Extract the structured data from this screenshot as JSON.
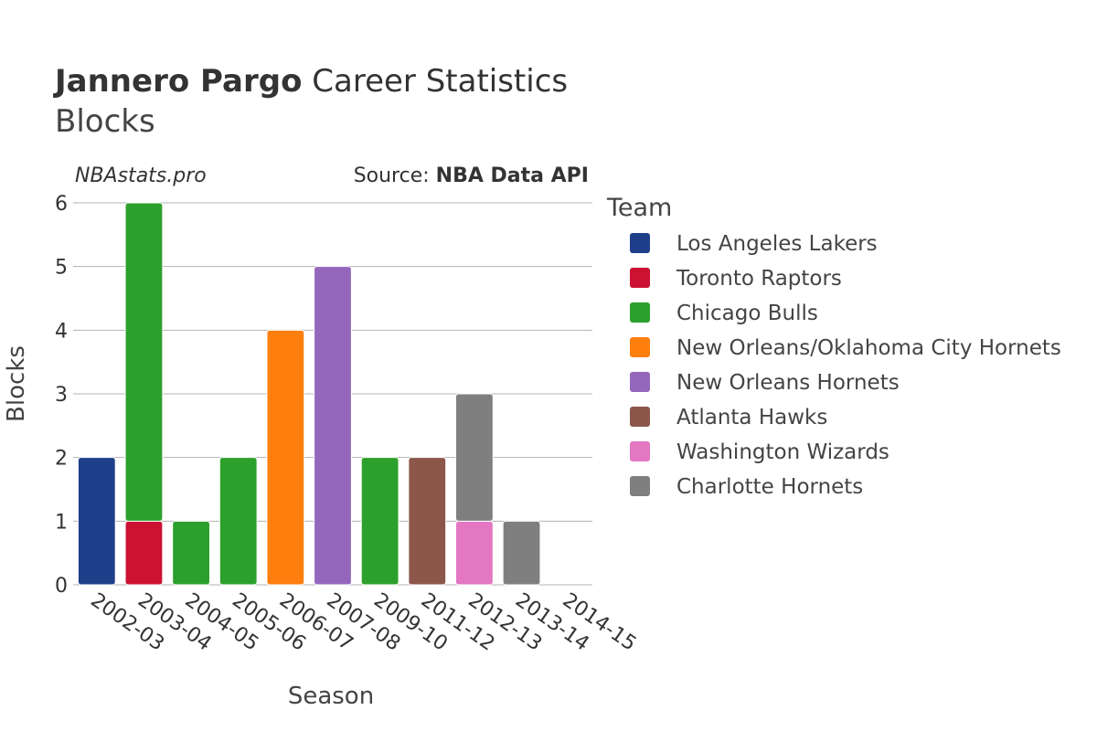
{
  "title": {
    "player": "Jannero Pargo",
    "rest": " Career Statistics",
    "subtitle": "Blocks"
  },
  "credit": {
    "site": "NBAstats.pro",
    "source_prefix": "Source: ",
    "source_name": "NBA Data API"
  },
  "chart_data": {
    "type": "bar",
    "stacked": true,
    "xlabel": "Season",
    "ylabel": "Blocks",
    "ylim": [
      0,
      6
    ],
    "yticks": [
      0,
      1,
      2,
      3,
      4,
      5,
      6
    ],
    "grid": true,
    "legend_title": "Team",
    "legend_position": "right",
    "categories": [
      "2002-03",
      "2003-04",
      "2004-05",
      "2005-06",
      "2006-07",
      "2007-08",
      "2009-10",
      "2011-12",
      "2012-13",
      "2013-14",
      "2014-15"
    ],
    "series": [
      {
        "name": "Los Angeles Lakers",
        "color": "#1f3f8a",
        "values": [
          2,
          0,
          0,
          0,
          0,
          0,
          0,
          0,
          0,
          0,
          0
        ]
      },
      {
        "name": "Toronto Raptors",
        "color": "#cc1133",
        "values": [
          0,
          1,
          0,
          0,
          0,
          0,
          0,
          0,
          0,
          0,
          0
        ]
      },
      {
        "name": "Chicago Bulls",
        "color": "#2ca02c",
        "values": [
          0,
          5,
          1,
          2,
          0,
          0,
          2,
          0,
          0,
          0,
          0
        ]
      },
      {
        "name": "New Orleans/Oklahoma City Hornets",
        "color": "#ff7f0e",
        "values": [
          0,
          0,
          0,
          0,
          4,
          0,
          0,
          0,
          0,
          0,
          0
        ]
      },
      {
        "name": "New Orleans Hornets",
        "color": "#9467bd",
        "values": [
          0,
          0,
          0,
          0,
          0,
          5,
          0,
          0,
          0,
          0,
          0
        ]
      },
      {
        "name": "Atlanta Hawks",
        "color": "#8c564b",
        "values": [
          0,
          0,
          0,
          0,
          0,
          0,
          0,
          2,
          0,
          0,
          0
        ]
      },
      {
        "name": "Washington Wizards",
        "color": "#e377c2",
        "values": [
          0,
          0,
          0,
          0,
          0,
          0,
          0,
          0,
          1,
          0,
          0
        ]
      },
      {
        "name": "Charlotte Hornets",
        "color": "#7f7f7f",
        "values": [
          0,
          0,
          0,
          0,
          0,
          0,
          0,
          0,
          2,
          1,
          0
        ]
      }
    ]
  }
}
